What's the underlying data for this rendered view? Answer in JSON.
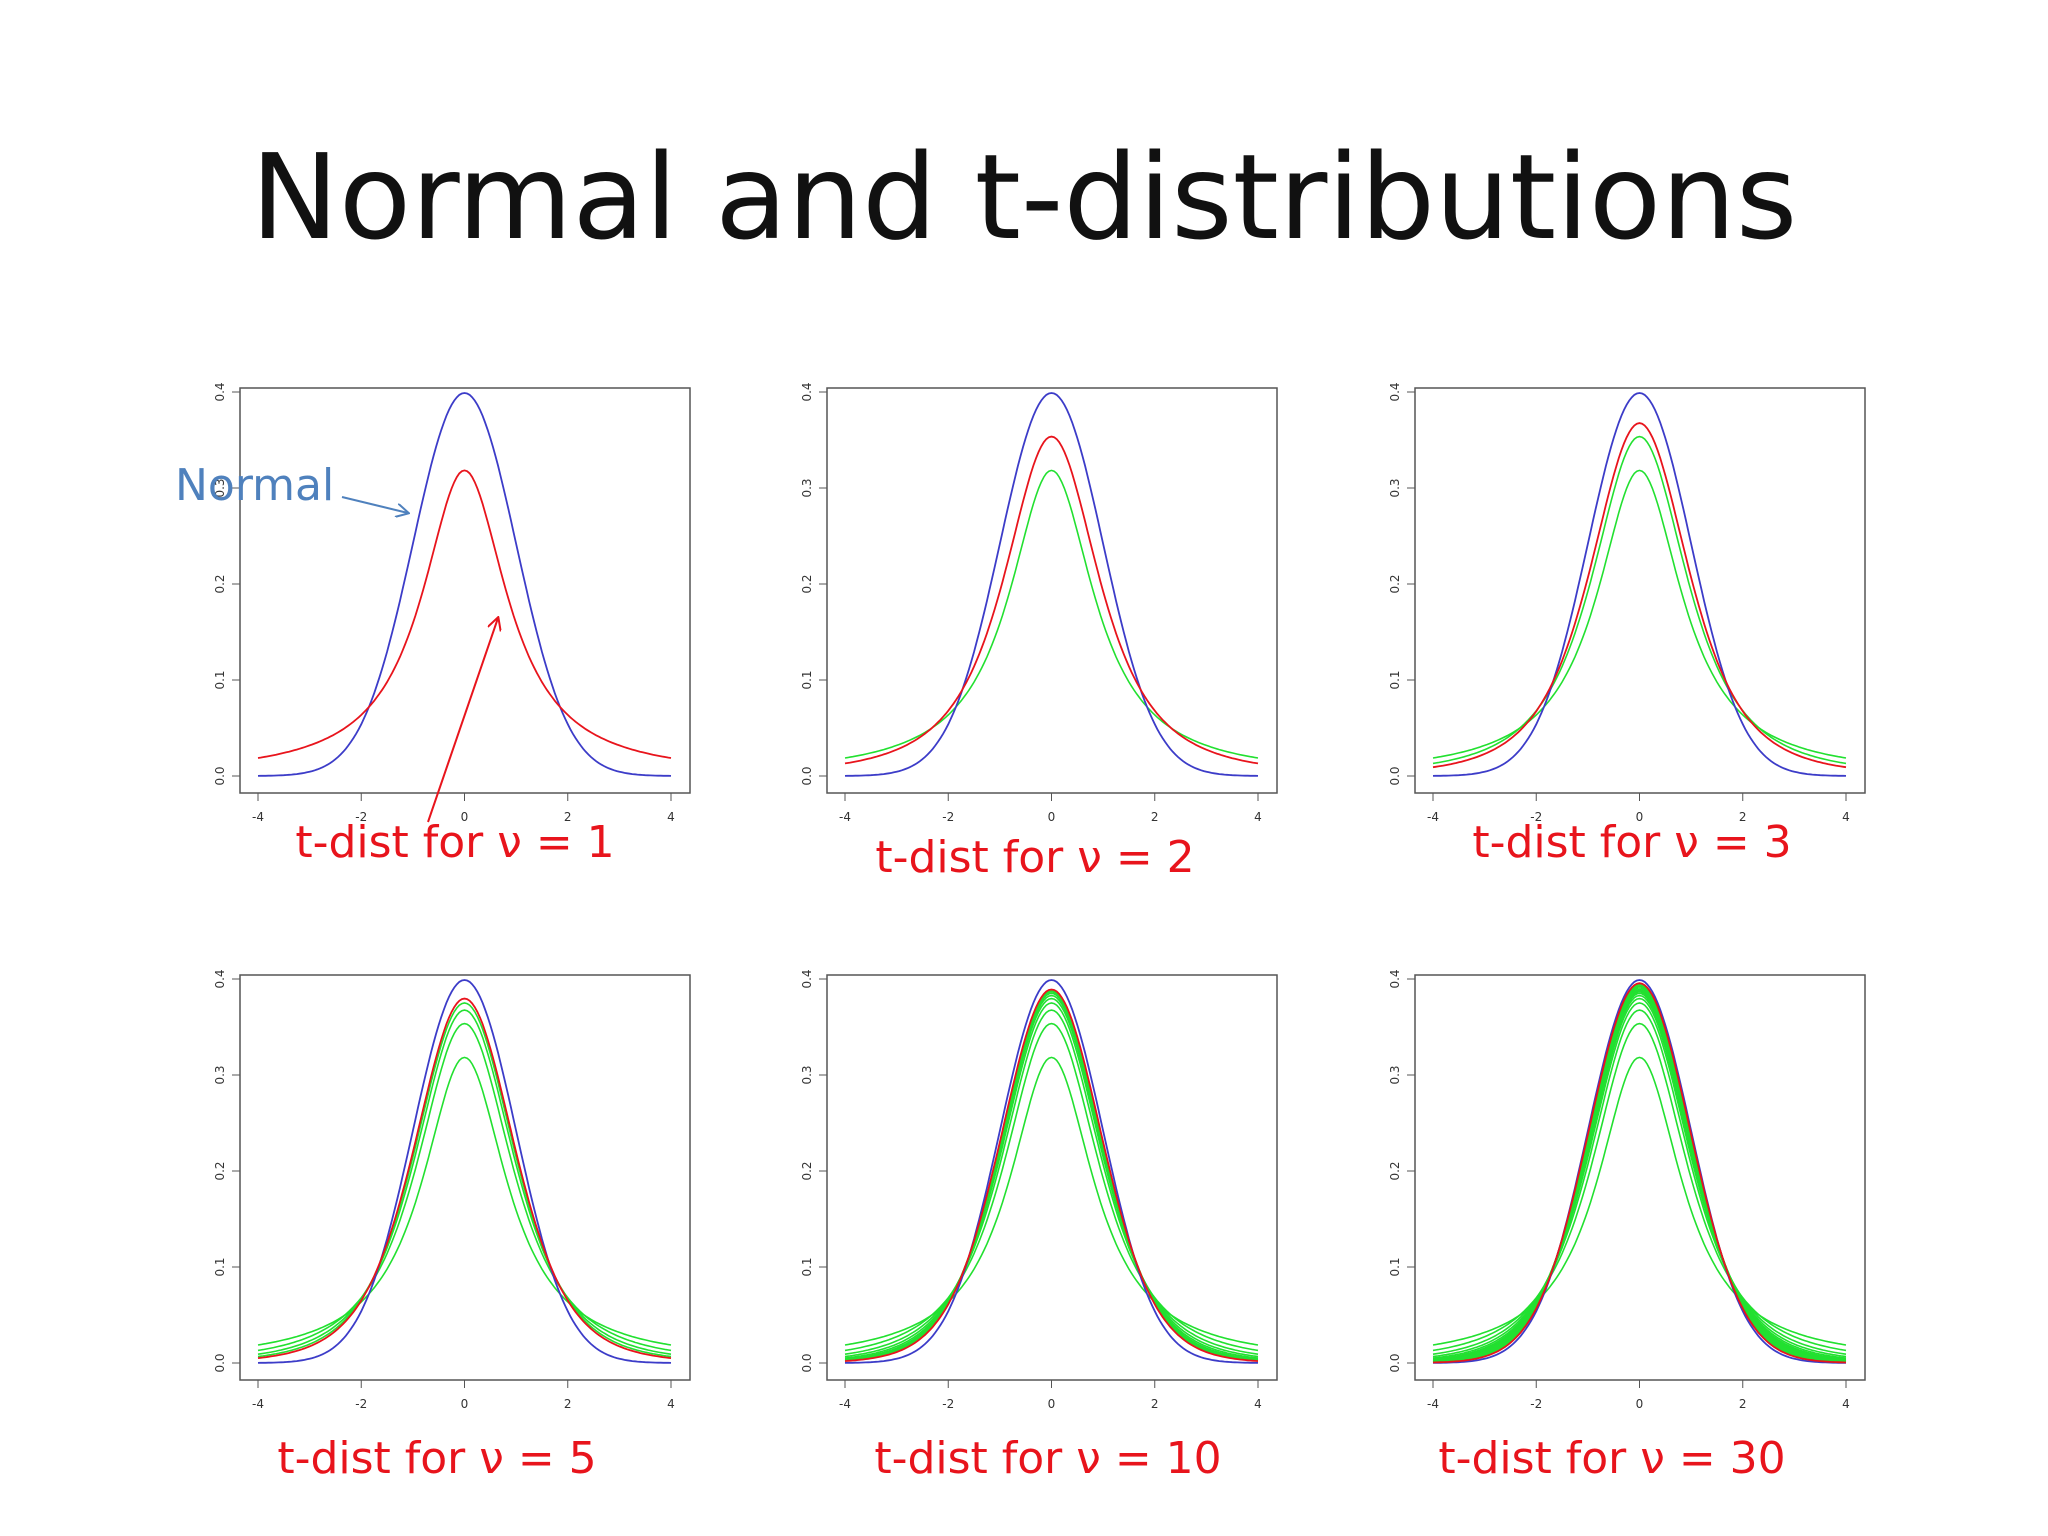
{
  "slide": {
    "title": "Normal and t-distributions"
  },
  "colors": {
    "normal": "#3c3cc8",
    "current": "#e8141c",
    "previous": "#22e030",
    "caption": "#e8141c",
    "normal_label": "#4f81bd"
  },
  "annotation": {
    "normal_label": "Normal"
  },
  "chart_data": [
    {
      "type": "line",
      "caption": "t-dist for ν = 1",
      "nu": 1,
      "previous_nu": [],
      "xlim": [
        -4,
        4
      ],
      "ylim": [
        0,
        0.4
      ],
      "x_ticks": [
        "-4",
        "-2",
        "0",
        "2",
        "4"
      ],
      "y_ticks": [
        "0.0",
        "0.1",
        "0.2",
        "0.3",
        "0.4"
      ],
      "series": [
        {
          "name": "Normal",
          "peak": 0.399,
          "color": "normal"
        },
        {
          "name": "t (ν = 1)",
          "peak": 0.318,
          "color": "current"
        }
      ]
    },
    {
      "type": "line",
      "caption": "t-dist for ν = 2",
      "nu": 2,
      "previous_nu": [
        1
      ],
      "xlim": [
        -4,
        4
      ],
      "ylim": [
        0,
        0.4
      ],
      "x_ticks": [
        "-4",
        "-2",
        "0",
        "2",
        "4"
      ],
      "y_ticks": [
        "0.0",
        "0.1",
        "0.2",
        "0.3",
        "0.4"
      ],
      "series": [
        {
          "name": "Normal",
          "peak": 0.399,
          "color": "normal"
        },
        {
          "name": "t (ν = 2)",
          "peak": 0.354,
          "color": "current"
        }
      ]
    },
    {
      "type": "line",
      "caption": "t-dist for ν = 3",
      "nu": 3,
      "previous_nu": [
        1,
        2
      ],
      "xlim": [
        -4,
        4
      ],
      "ylim": [
        0,
        0.4
      ],
      "x_ticks": [
        "-4",
        "-2",
        "0",
        "2",
        "4"
      ],
      "y_ticks": [
        "0.0",
        "0.1",
        "0.2",
        "0.3",
        "0.4"
      ],
      "series": [
        {
          "name": "Normal",
          "peak": 0.399,
          "color": "normal"
        },
        {
          "name": "t (ν = 3)",
          "peak": 0.368,
          "color": "current"
        }
      ]
    },
    {
      "type": "line",
      "caption": "t-dist for ν = 5",
      "nu": 5,
      "previous_nu": [
        1,
        2,
        3,
        4
      ],
      "xlim": [
        -4,
        4
      ],
      "ylim": [
        0,
        0.4
      ],
      "x_ticks": [
        "-4",
        "-2",
        "0",
        "2",
        "4"
      ],
      "y_ticks": [
        "0.0",
        "0.1",
        "0.2",
        "0.3",
        "0.4"
      ],
      "series": [
        {
          "name": "Normal",
          "peak": 0.399,
          "color": "normal"
        },
        {
          "name": "t (ν = 5)",
          "peak": 0.38,
          "color": "current"
        }
      ]
    },
    {
      "type": "line",
      "caption": "t-dist for ν = 10",
      "nu": 10,
      "previous_nu": [
        1,
        2,
        3,
        4,
        5,
        6,
        7,
        8,
        9
      ],
      "xlim": [
        -4,
        4
      ],
      "ylim": [
        0,
        0.4
      ],
      "x_ticks": [
        "-4",
        "-2",
        "0",
        "2",
        "4"
      ],
      "y_ticks": [
        "0.0",
        "0.1",
        "0.2",
        "0.3",
        "0.4"
      ],
      "series": [
        {
          "name": "Normal",
          "peak": 0.399,
          "color": "normal"
        },
        {
          "name": "t (ν = 10)",
          "peak": 0.389,
          "color": "current"
        }
      ]
    },
    {
      "type": "line",
      "caption": "t-dist for ν = 30",
      "nu": 30,
      "previous_nu": [
        1,
        2,
        3,
        4,
        5,
        6,
        7,
        8,
        9,
        10,
        12,
        15,
        20,
        25
      ],
      "xlim": [
        -4,
        4
      ],
      "ylim": [
        0,
        0.4
      ],
      "x_ticks": [
        "-4",
        "-2",
        "0",
        "2",
        "4"
      ],
      "y_ticks": [
        "0.0",
        "0.1",
        "0.2",
        "0.3",
        "0.4"
      ],
      "series": [
        {
          "name": "Normal",
          "peak": 0.399,
          "color": "normal"
        },
        {
          "name": "t (ν = 30)",
          "peak": 0.396,
          "color": "current"
        }
      ]
    }
  ]
}
